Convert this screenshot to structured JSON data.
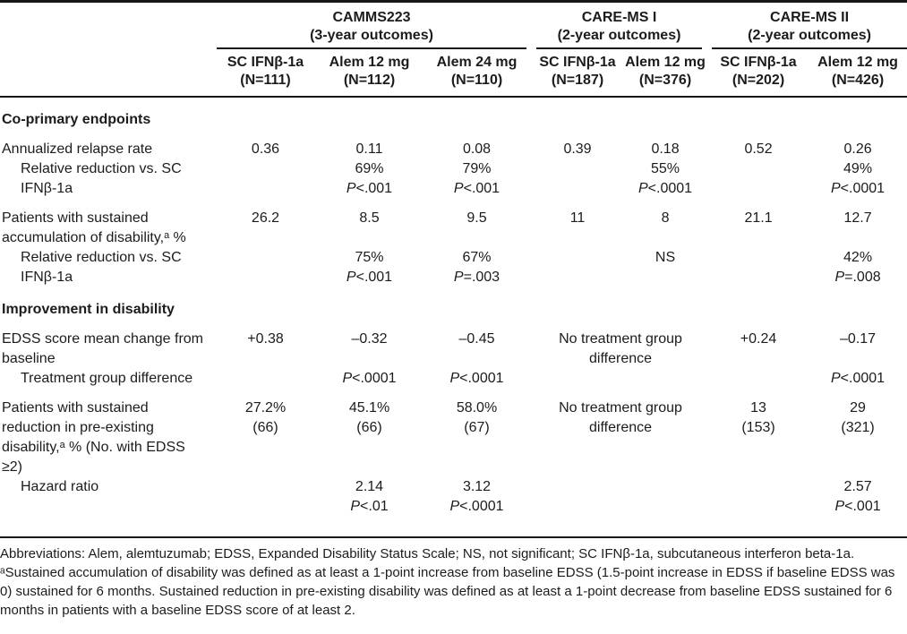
{
  "table": {
    "spanners": [
      {
        "label": "CAMMS223",
        "sub": "(3-year outcomes)",
        "span": 3
      },
      {
        "label": "CARE-MS I",
        "sub": "(2-year outcomes)",
        "span": 2
      },
      {
        "label": "CARE-MS II",
        "sub": "(2-year outcomes)",
        "span": 2
      }
    ],
    "columns": [
      {
        "arm": "SC IFNβ-1a",
        "n": "(N=111)"
      },
      {
        "arm": "Alem 12 mg",
        "n": "(N=112)"
      },
      {
        "arm": "Alem 24 mg",
        "n": "(N=110)"
      },
      {
        "arm": "SC IFNβ-1a",
        "n": "(N=187)"
      },
      {
        "arm": "Alem 12 mg",
        "n": "(N=376)"
      },
      {
        "arm": "SC IFNβ-1a",
        "n": "(N=202)"
      },
      {
        "arm": "Alem 12 mg",
        "n": "(N=426)"
      }
    ],
    "body": [
      {
        "type": "section",
        "label": "Co-primary endpoints"
      },
      {
        "type": "row",
        "label": "Annualized relapse rate",
        "cells": [
          [
            "0.36"
          ],
          [
            "0.11"
          ],
          [
            "0.08"
          ],
          [
            "0.39"
          ],
          [
            "0.18"
          ],
          [
            "0.52"
          ],
          [
            "0.26"
          ]
        ]
      },
      {
        "type": "subrow",
        "label": "Relative reduction vs. SC IFNβ-1a",
        "cells": [
          [],
          [
            "69%",
            "P<.001"
          ],
          [
            "79%",
            "P<.001"
          ],
          [],
          [
            "55%",
            "P<.0001"
          ],
          [],
          [
            "49%",
            "P<.0001"
          ]
        ]
      },
      {
        "type": "row",
        "label": "Patients with sustained accumulation of disability,ᵃ %",
        "cells": [
          [
            "26.2"
          ],
          [
            "8.5"
          ],
          [
            "9.5"
          ],
          [
            "11"
          ],
          [
            "8"
          ],
          [
            "21.1"
          ],
          [
            "12.7"
          ]
        ]
      },
      {
        "type": "subrow",
        "label": "Relative reduction vs. SC IFNβ-1a",
        "cells": [
          [],
          [
            "75%",
            "P<.001"
          ],
          [
            "67%",
            "P=.003"
          ],
          [],
          [
            "NS"
          ],
          [],
          [
            "42%",
            "P=.008"
          ]
        ]
      },
      {
        "type": "section",
        "label": "Improvement in disability"
      },
      {
        "type": "row",
        "label": "EDSS score mean change from baseline",
        "cells": [
          [
            "+0.38"
          ],
          [
            "–0.32"
          ],
          [
            "–0.45"
          ],
          {
            "span": 2,
            "lines": [
              "No treatment group difference"
            ]
          },
          [
            "+0.24"
          ],
          [
            "–0.17"
          ]
        ]
      },
      {
        "type": "subrow",
        "label": "Treatment group difference",
        "cells": [
          [],
          [
            "P<.0001"
          ],
          [
            "P<.0001"
          ],
          {
            "span": 2,
            "lines": []
          },
          [],
          [
            "P<.0001"
          ]
        ]
      },
      {
        "type": "row",
        "label": "Patients with sustained reduction in pre-existing disability,ᵃ % (No. with EDSS ≥2)",
        "cells": [
          [
            "27.2%",
            "(66)"
          ],
          [
            "45.1%",
            "(66)"
          ],
          [
            "58.0%",
            "(67)"
          ],
          {
            "span": 2,
            "lines": [
              "No treatment group difference"
            ]
          },
          [
            "13",
            "(153)"
          ],
          [
            "29",
            "(321)"
          ]
        ]
      },
      {
        "type": "subrow",
        "label": "Hazard ratio",
        "cells": [
          [],
          [
            "2.14",
            "P<.01"
          ],
          [
            "3.12",
            "P<.0001"
          ],
          {
            "span": 2,
            "lines": []
          },
          [],
          [
            "2.57",
            "P<.001"
          ]
        ]
      }
    ]
  },
  "footnotes": {
    "abbreviations": "Abbreviations: Alem, alemtuzumab; EDSS, Expanded Disability Status Scale; NS, not significant; SC IFNβ-1a, subcutaneous interferon beta-1a.",
    "note_a": "ᵃSustained accumulation of disability was defined as at least a 1-point increase from baseline EDSS (1.5-point increase in EDSS if baseline EDSS was 0) sustained for 6 months. Sustained reduction in pre-existing disability was defined as at least a 1-point decrease from baseline EDSS sustained for 6 months in patients with a baseline EDSS score of at least 2."
  }
}
